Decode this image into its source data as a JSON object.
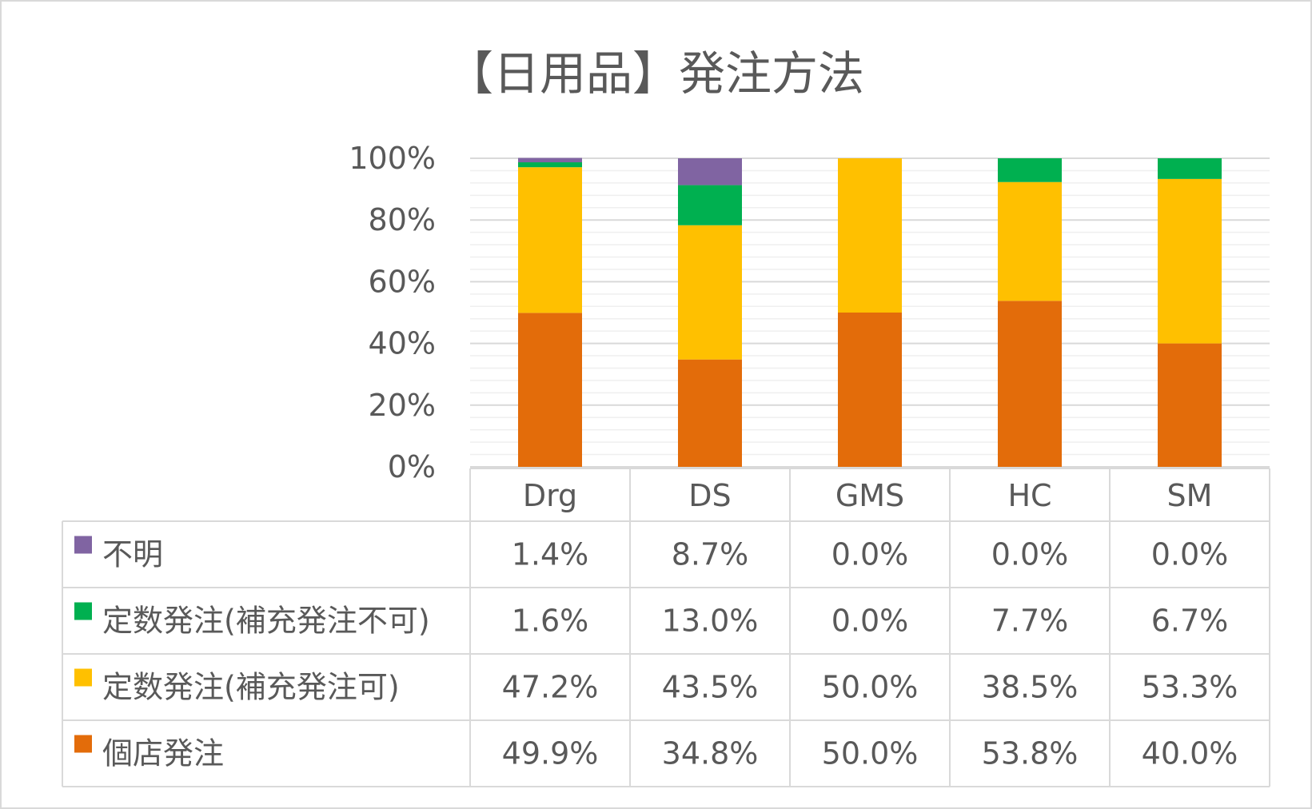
{
  "chart_data": {
    "type": "bar",
    "stacked": true,
    "title": "【日用品】発注方法",
    "xlabel": "",
    "ylabel": "",
    "ylim": [
      0,
      100
    ],
    "y_ticks": [
      "0%",
      "20%",
      "40%",
      "60%",
      "80%",
      "100%"
    ],
    "categories": [
      "Drg",
      "DS",
      "GMS",
      "HC",
      "SM"
    ],
    "grid": true,
    "legend": "data-table-left",
    "series": [
      {
        "name": "個店発注",
        "color": "#E36C0A",
        "values": [
          49.9,
          34.8,
          50.0,
          53.8,
          40.0
        ],
        "labels": [
          "49.9%",
          "34.8%",
          "50.0%",
          "53.8%",
          "40.0%"
        ]
      },
      {
        "name": "定数発注(補充発注可)",
        "color": "#FFC000",
        "values": [
          47.2,
          43.5,
          50.0,
          38.5,
          53.3
        ],
        "labels": [
          "47.2%",
          "43.5%",
          "50.0%",
          "38.5%",
          "53.3%"
        ]
      },
      {
        "name": "定数発注(補充発注不可)",
        "color": "#00B050",
        "values": [
          1.6,
          13.0,
          0.0,
          7.7,
          6.7
        ],
        "labels": [
          "1.6%",
          "13.0%",
          "0.0%",
          "7.7%",
          "6.7%"
        ]
      },
      {
        "name": "不明",
        "color": "#8064A2",
        "values": [
          1.4,
          8.7,
          0.0,
          0.0,
          0.0
        ],
        "labels": [
          "1.4%",
          "8.7%",
          "0.0%",
          "0.0%",
          "0.0%"
        ]
      }
    ]
  }
}
